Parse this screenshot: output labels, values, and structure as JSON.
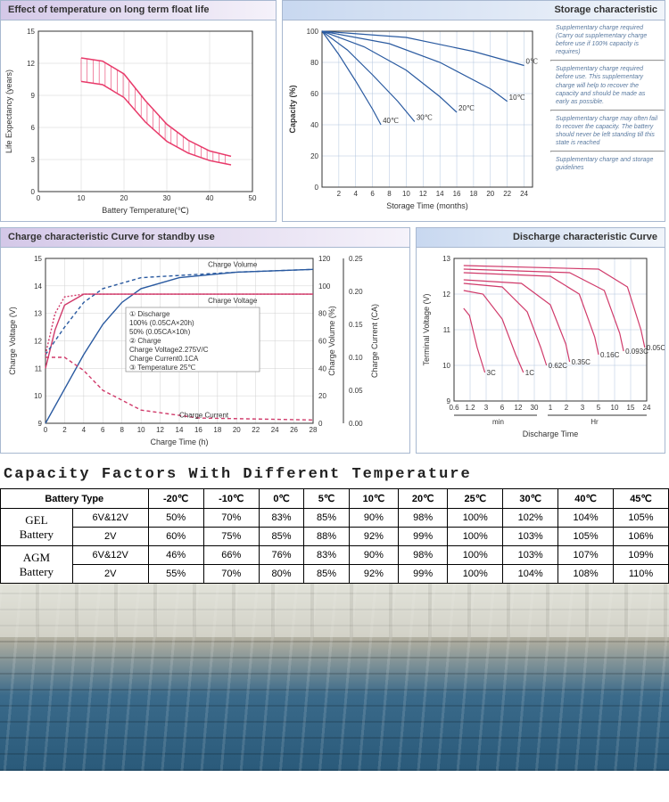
{
  "panels": {
    "float_life": {
      "title": "Effect of temperature on long term float life",
      "type": "area-band",
      "xlabel": "Battery Temperature(℃)",
      "ylabel": "Life Expectancy (years)",
      "xlim": [
        0,
        50
      ],
      "xtick_step": 10,
      "ylim": [
        0,
        15
      ],
      "ytick_step": 3,
      "grid_color": "#d0d0d0",
      "band_color": "#e83a6a",
      "band_fill": "#ffffff",
      "upper": [
        [
          10,
          12.5
        ],
        [
          15,
          12.2
        ],
        [
          20,
          11
        ],
        [
          25,
          8.5
        ],
        [
          30,
          6.3
        ],
        [
          35,
          4.8
        ],
        [
          40,
          3.8
        ],
        [
          45,
          3.3
        ]
      ],
      "lower": [
        [
          10,
          10.3
        ],
        [
          15,
          10.0
        ],
        [
          20,
          8.8
        ],
        [
          25,
          6.5
        ],
        [
          30,
          4.7
        ],
        [
          35,
          3.6
        ],
        [
          40,
          2.9
        ],
        [
          45,
          2.5
        ]
      ]
    },
    "storage": {
      "title": "Storage characteristic",
      "type": "line",
      "xlabel": "Storage Time (months)",
      "ylabel": "Capacity (%)",
      "xlim": [
        0,
        25
      ],
      "xtick_step": 2,
      "xtick_start": 2,
      "ylim": [
        0,
        100
      ],
      "ytick_step": 20,
      "grid_color": "#b0c4de",
      "line_color": "#2a5aa0",
      "series": {
        "40℃": [
          [
            0,
            100
          ],
          [
            2,
            85
          ],
          [
            4,
            68
          ],
          [
            6,
            50
          ],
          [
            7,
            40
          ]
        ],
        "30℃": [
          [
            0,
            100
          ],
          [
            3,
            88
          ],
          [
            6,
            72
          ],
          [
            9,
            55
          ],
          [
            11,
            42
          ]
        ],
        "20℃": [
          [
            0,
            100
          ],
          [
            5,
            90
          ],
          [
            10,
            75
          ],
          [
            14,
            58
          ],
          [
            16,
            48
          ]
        ],
        "10℃": [
          [
            0,
            100
          ],
          [
            8,
            92
          ],
          [
            14,
            80
          ],
          [
            20,
            63
          ],
          [
            22,
            55
          ]
        ],
        "0℃": [
          [
            0,
            100
          ],
          [
            10,
            96
          ],
          [
            18,
            87
          ],
          [
            24,
            78
          ]
        ]
      },
      "notes": [
        "Supplementary charge required (Carry out supplementary charge before use if 100% capacity is requires)",
        "Supplementary charge required before use. This supplementary charge will help to recover the capacity and should be made as early as possible.",
        "Supplementary charge may often fail to recover the capacity. The battery should never be left standing till this state is reached",
        "Supplementary charge and storage guidelines"
      ]
    },
    "charge": {
      "title": "Charge characteristic Curve for standby use",
      "type": "multi-axis-line",
      "xlabel": "Charge Time (h)",
      "xlim": [
        0,
        28
      ],
      "xtick_step": 2,
      "axes": [
        {
          "label": "Charge Voltage (V)",
          "ylim": [
            9,
            15
          ],
          "ytick_step": 1,
          "side": "left",
          "color": "#333"
        },
        {
          "label": "Charge Volume (%)",
          "ylim": [
            0,
            120
          ],
          "ytick_step": 20,
          "side": "right",
          "color": "#333"
        },
        {
          "label": "Charge Current (CA)",
          "ylim": [
            0,
            0.25
          ],
          "ytick_step": 0.05,
          "side": "right2",
          "color": "#333"
        }
      ],
      "grid_color": "#d0d0d0",
      "curves": {
        "Charge Volume": {
          "color": "#2a5aa0",
          "dash": "",
          "data": [
            [
              0,
              0
            ],
            [
              2,
              25
            ],
            [
              4,
              50
            ],
            [
              6,
              72
            ],
            [
              8,
              88
            ],
            [
              10,
              98
            ],
            [
              14,
              106
            ],
            [
              20,
              110
            ],
            [
              28,
              112
            ]
          ]
        },
        "Charge Voltage": {
          "color": "#d03a6a",
          "dash": "",
          "data": [
            [
              0,
              11
            ],
            [
              1,
              12.4
            ],
            [
              2,
              13.3
            ],
            [
              4,
              13.7
            ],
            [
              8,
              13.7
            ],
            [
              28,
              13.7
            ]
          ]
        },
        "Charge Current": {
          "color": "#d03a6a",
          "dash": "4,3",
          "data": [
            [
              0,
              0.1
            ],
            [
              2,
              0.1
            ],
            [
              4,
              0.08
            ],
            [
              6,
              0.05
            ],
            [
              10,
              0.02
            ],
            [
              16,
              0.008
            ],
            [
              28,
              0.005
            ]
          ]
        },
        "Volume 50%": {
          "color": "#2a5aa0",
          "dash": "4,3",
          "data": [
            [
              0,
              50
            ],
            [
              2,
              70
            ],
            [
              4,
              88
            ],
            [
              6,
              98
            ],
            [
              10,
              106
            ],
            [
              20,
              110
            ],
            [
              28,
              112
            ]
          ]
        },
        "Voltage 50%": {
          "color": "#d03a6a",
          "dash": "2,2",
          "data": [
            [
              0,
              11.5
            ],
            [
              1,
              13
            ],
            [
              2,
              13.6
            ],
            [
              4,
              13.7
            ],
            [
              28,
              13.7
            ]
          ]
        }
      },
      "legend_box": [
        "① Discharge",
        "   100% (0.05CA×20h)",
        "   50%  (0.05CA×10h)",
        "② Charge",
        "   Charge Voltage2.275V/C",
        "   Charge Current0.1CA",
        "③ Temperature 25℃"
      ],
      "curve_labels": [
        "Charge Volume",
        "Charge Voltage",
        "Charge Current"
      ]
    },
    "discharge": {
      "title": "Discharge characteristic Curve",
      "type": "line",
      "xlabel": "Discharge Time",
      "ylabel": "Terminal Voltage (V)",
      "ylim": [
        9,
        13
      ],
      "ytick_step": 1,
      "x_segments": {
        "min": [
          "0.6",
          "1.2",
          "3",
          "6",
          "12",
          "30"
        ],
        "hr": [
          "1",
          "2",
          "3",
          "5",
          "10",
          "15",
          "24"
        ]
      },
      "grid_color": "#b0c4de",
      "line_color": "#d03a6a",
      "curves": {
        "3C": [
          [
            0.05,
            11.6
          ],
          [
            0.08,
            11.4
          ],
          [
            0.12,
            10.5
          ],
          [
            0.16,
            9.8
          ]
        ],
        "1C": [
          [
            0.05,
            12.1
          ],
          [
            0.15,
            12.0
          ],
          [
            0.25,
            11.3
          ],
          [
            0.32,
            10.3
          ],
          [
            0.36,
            9.8
          ]
        ],
        "0.62C": [
          [
            0.05,
            12.3
          ],
          [
            0.25,
            12.2
          ],
          [
            0.38,
            11.5
          ],
          [
            0.45,
            10.5
          ],
          [
            0.48,
            10.0
          ]
        ],
        "0.35C": [
          [
            0.05,
            12.4
          ],
          [
            0.35,
            12.3
          ],
          [
            0.5,
            11.7
          ],
          [
            0.58,
            10.6
          ],
          [
            0.6,
            10.1
          ]
        ],
        "0.16C": [
          [
            0.05,
            12.6
          ],
          [
            0.5,
            12.5
          ],
          [
            0.65,
            12.0
          ],
          [
            0.73,
            10.8
          ],
          [
            0.75,
            10.3
          ]
        ],
        "0.093C": [
          [
            0.05,
            12.7
          ],
          [
            0.6,
            12.6
          ],
          [
            0.78,
            12.1
          ],
          [
            0.86,
            10.9
          ],
          [
            0.88,
            10.4
          ]
        ],
        "0.05C": [
          [
            0.05,
            12.8
          ],
          [
            0.75,
            12.7
          ],
          [
            0.9,
            12.2
          ],
          [
            0.97,
            11.0
          ],
          [
            0.99,
            10.5
          ]
        ]
      },
      "curve_label_color": "#2a6ac0"
    }
  },
  "capacity_table": {
    "title": "Capacity Factors With Different Temperature",
    "header_type": "Battery Type",
    "temps": [
      "-20℃",
      "-10℃",
      "0℃",
      "5℃",
      "10℃",
      "20℃",
      "25℃",
      "30℃",
      "40℃",
      "45℃"
    ],
    "groups": [
      {
        "name": "GEL Battery",
        "rows": [
          {
            "sub": "6V&12V",
            "vals": [
              "50%",
              "70%",
              "83%",
              "85%",
              "90%",
              "98%",
              "100%",
              "102%",
              "104%",
              "105%"
            ]
          },
          {
            "sub": "2V",
            "vals": [
              "60%",
              "75%",
              "85%",
              "88%",
              "92%",
              "99%",
              "100%",
              "103%",
              "105%",
              "106%"
            ]
          }
        ]
      },
      {
        "name": "AGM Battery",
        "rows": [
          {
            "sub": "6V&12V",
            "vals": [
              "46%",
              "66%",
              "76%",
              "83%",
              "90%",
              "98%",
              "100%",
              "103%",
              "107%",
              "109%"
            ]
          },
          {
            "sub": "2V",
            "vals": [
              "55%",
              "70%",
              "80%",
              "85%",
              "92%",
              "99%",
              "100%",
              "104%",
              "108%",
              "110%"
            ]
          }
        ]
      }
    ]
  }
}
